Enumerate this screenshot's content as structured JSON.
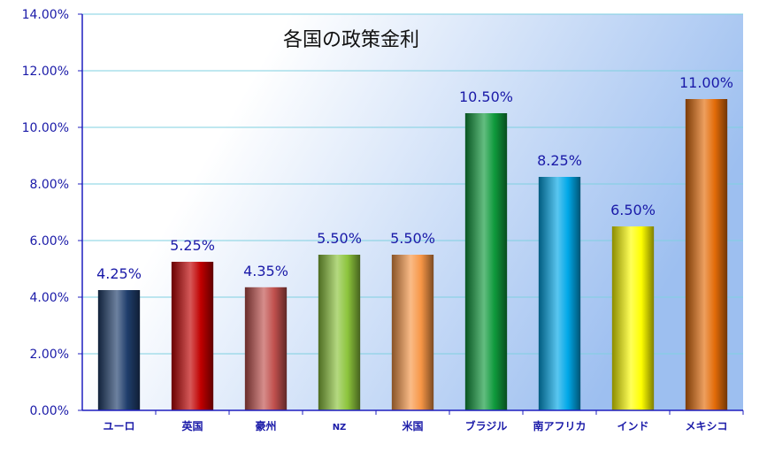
{
  "chart_data": {
    "type": "bar",
    "title": "各国の政策金利",
    "categories": [
      "ユーロ",
      "英国",
      "豪州",
      "NZ",
      "米国",
      "ブラジル",
      "南アフリカ",
      "インド",
      "メキシコ"
    ],
    "values": [
      4.25,
      5.25,
      4.35,
      5.5,
      5.5,
      10.5,
      8.25,
      6.5,
      11.0
    ],
    "data_labels": [
      "4.25%",
      "5.25%",
      "4.35%",
      "5.50%",
      "5.50%",
      "10.50%",
      "8.25%",
      "6.50%",
      "11.00%"
    ],
    "ylim": [
      0,
      14
    ],
    "yticks": [
      0,
      2,
      4,
      6,
      8,
      10,
      12,
      14
    ],
    "ytick_labels": [
      "0.00%",
      "2.00%",
      "4.00%",
      "6.00%",
      "8.00%",
      "10.00%",
      "12.00%",
      "14.00%"
    ],
    "xlabel": "",
    "ylabel": "",
    "grid": true,
    "legend": "none",
    "bar_colors": [
      "#1f3d6b",
      "#c00000",
      "#c0504d",
      "#8cc43c",
      "#f79646",
      "#0f9a3c",
      "#00a8e8",
      "#ffff00",
      "#e36c09"
    ],
    "axis_color": "#1f1fbf",
    "grid_color": "#7fd0e0",
    "label_color": "#1a1aa8",
    "background_gradient": [
      "#ffffff",
      "#9dbff0"
    ]
  }
}
